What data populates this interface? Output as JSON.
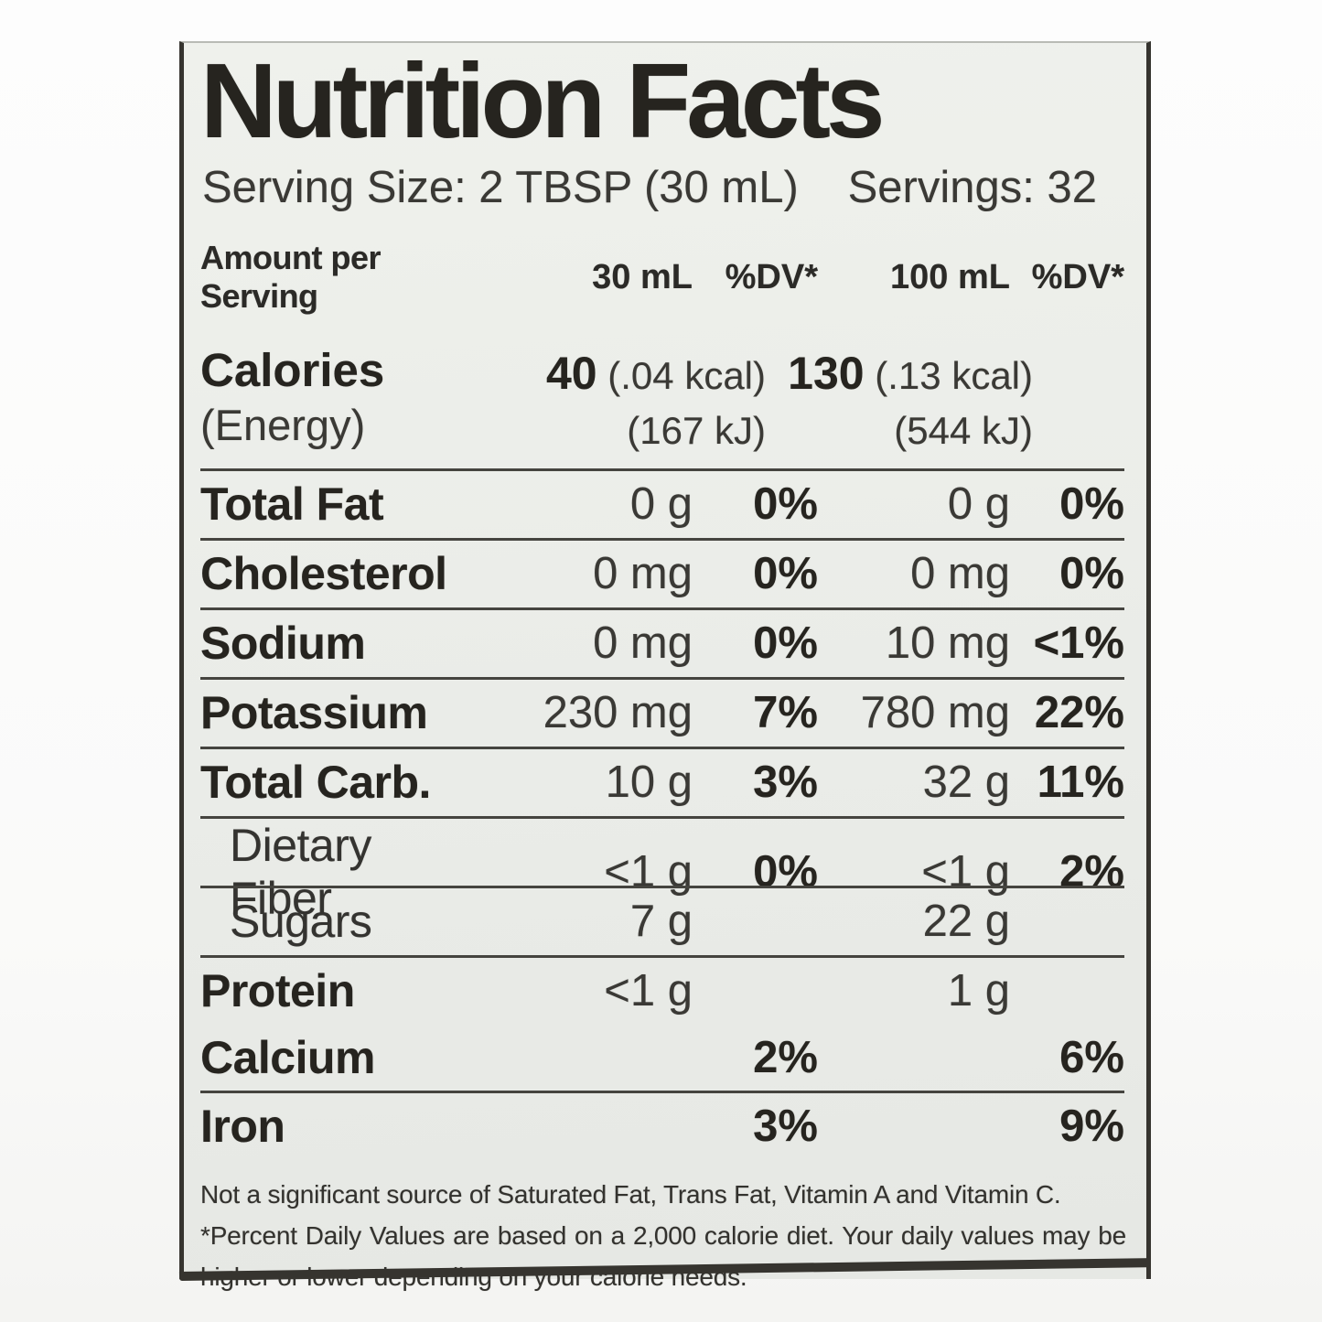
{
  "label": {
    "title": "Nutrition Facts",
    "serving_size": "Serving Size: 2 TBSP (30 mL)",
    "servings": "Servings: 32",
    "columns": {
      "amount_header": "Amount per Serving",
      "col_30ml": "30 mL",
      "col_dv1": "%DV*",
      "col_100ml": "100 mL",
      "col_dv2": "%DV*"
    },
    "calories": {
      "name": "Calories",
      "name_suffix": "(Energy)",
      "v30": "40",
      "v30_kcal": "(.04 kcal)",
      "v30_kj": "(167 kJ)",
      "v100": "130",
      "v100_kcal": "(.13 kcal)",
      "v100_kj": "(544 kJ)"
    },
    "rows": [
      {
        "name": "Total Fat",
        "a1": "0 g",
        "dv1": "0%",
        "a2": "0 g",
        "dv2": "0%"
      },
      {
        "name": "Cholesterol",
        "a1": "0 mg",
        "dv1": "0%",
        "a2": "0 mg",
        "dv2": "0%"
      },
      {
        "name": "Sodium",
        "a1": "0 mg",
        "dv1": "0%",
        "a2": "10 mg",
        "dv2": "<1%"
      },
      {
        "name": "Potassium",
        "a1": "230 mg",
        "dv1": "7%",
        "a2": "780 mg",
        "dv2": "22%"
      },
      {
        "name": "Total Carb.",
        "a1": "10 g",
        "dv1": "3%",
        "a2": "32 g",
        "dv2": "11%"
      },
      {
        "name": "Dietary Fiber",
        "a1": "<1 g",
        "dv1": "0%",
        "a2": "<1 g",
        "dv2": "2%"
      },
      {
        "name": "Sugars",
        "a1": "7 g",
        "dv1": "",
        "a2": "22 g",
        "dv2": ""
      },
      {
        "name": "Protein",
        "a1": "<1 g",
        "dv1": "",
        "a2": "1 g",
        "dv2": ""
      }
    ],
    "minerals": [
      {
        "name": "Calcium",
        "dv1": "2%",
        "dv2": "6%"
      },
      {
        "name": "Iron",
        "dv1": "3%",
        "dv2": "9%"
      }
    ],
    "footnote1": "Not a significant source of Saturated Fat, Trans Fat, Vitamin A and Vitamin C.",
    "footnote2": "*Percent Daily Values are based on a 2,000 calorie diet. Your daily values may be higher or lower depending on your calorie needs."
  },
  "colors": {
    "label_background": "#eaece8",
    "divider_bar": "#2f2d29",
    "text": "#26241f"
  }
}
